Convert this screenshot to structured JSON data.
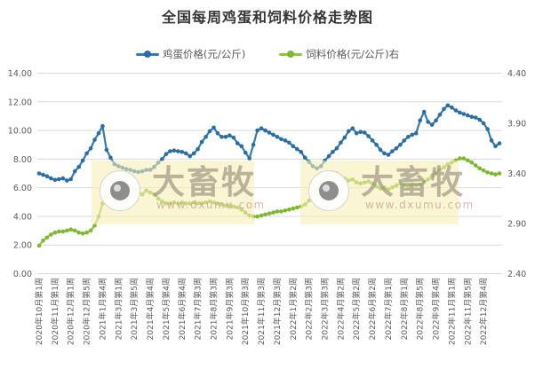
{
  "chart_data": {
    "type": "line",
    "title": "全国每周鸡蛋和饲料价格走势图",
    "x_labels": [
      "2020年10月第1周",
      "2020年11月第1周",
      "2020年12月第1周",
      "2020年12月第5周",
      "2021年1月第4周",
      "2021年3月第1周",
      "2021年3月第5周",
      "2021年4月第4周",
      "2021年5月第4周",
      "2021年6月第4周",
      "2021年7月第3周",
      "2021年8月第3周",
      "2021年9月第3周",
      "2021年10月第3周",
      "2021年11月第3周",
      "2021年12月第3周",
      "2022年1月第2周",
      "2022年2月第3周",
      "2022年3月第3周",
      "2022年4月第2周",
      "2022年5月第2周",
      "2022年6月第2周",
      "2022年7月第1周",
      "2022年8月第1周",
      "2022年8月第5周",
      "2022年9月第4周",
      "2022年11月第1周",
      "2022年11月第5周",
      "2022年12月第4周"
    ],
    "x_label_every": 4,
    "left_axis": {
      "min": 0,
      "max": 14,
      "ticks": [
        "0.00",
        "2.00",
        "4.00",
        "6.00",
        "8.00",
        "10.00",
        "12.00",
        "14.00"
      ]
    },
    "right_axis": {
      "min": 2.4,
      "max": 4.4,
      "ticks": [
        "2.40",
        "2.90",
        "3.40",
        "3.90",
        "4.40"
      ]
    },
    "grid_color": "#d9d9d9",
    "tick_color": "#595959",
    "legend_position": "top-center",
    "series": [
      {
        "name": "鸡蛋价格(元/公斤)",
        "axis": "left",
        "color": "#2f7cb4",
        "marker_color": "#2a6ea5",
        "values": [
          7.0,
          6.9,
          6.8,
          6.65,
          6.55,
          6.6,
          6.65,
          6.5,
          6.6,
          7.15,
          7.45,
          7.9,
          8.4,
          8.75,
          9.35,
          9.8,
          10.3,
          8.65,
          8.1,
          7.65,
          7.5,
          7.4,
          7.3,
          7.25,
          7.15,
          7.1,
          7.15,
          7.25,
          7.25,
          7.45,
          7.75,
          8.0,
          8.35,
          8.55,
          8.6,
          8.55,
          8.5,
          8.4,
          8.2,
          8.4,
          8.7,
          9.2,
          9.55,
          9.95,
          10.2,
          9.8,
          9.55,
          9.55,
          9.65,
          9.5,
          9.1,
          8.9,
          8.45,
          8.05,
          9.0,
          10.0,
          10.15,
          10.0,
          9.85,
          9.7,
          9.55,
          9.4,
          9.3,
          9.15,
          8.9,
          8.7,
          8.5,
          8.1,
          7.8,
          7.5,
          7.35,
          7.5,
          7.9,
          8.2,
          8.5,
          8.75,
          9.15,
          9.5,
          9.95,
          10.15,
          9.8,
          9.9,
          9.85,
          9.6,
          9.3,
          9.0,
          8.65,
          8.4,
          8.3,
          8.55,
          8.75,
          9.0,
          9.3,
          9.55,
          9.7,
          9.8,
          10.7,
          11.3,
          10.6,
          10.4,
          10.7,
          11.1,
          11.5,
          11.75,
          11.6,
          11.4,
          11.25,
          11.15,
          11.05,
          10.95,
          10.9,
          10.75,
          10.5,
          10.1,
          9.3,
          8.9,
          9.1
        ]
      },
      {
        "name": "饲料价格(元/公斤)右",
        "axis": "right",
        "color": "#8ec63f",
        "marker_color": "#7db82f",
        "values": [
          2.68,
          2.73,
          2.76,
          2.79,
          2.81,
          2.82,
          2.82,
          2.83,
          2.84,
          2.83,
          2.81,
          2.8,
          2.81,
          2.83,
          2.88,
          2.97,
          3.1,
          3.18,
          3.22,
          3.24,
          3.25,
          3.24,
          3.25,
          3.26,
          3.25,
          3.22,
          3.19,
          3.23,
          3.21,
          3.19,
          3.15,
          3.12,
          3.1,
          3.1,
          3.11,
          3.1,
          3.11,
          3.1,
          3.1,
          3.11,
          3.1,
          3.1,
          3.11,
          3.12,
          3.11,
          3.1,
          3.09,
          3.08,
          3.08,
          3.07,
          3.06,
          3.04,
          3.01,
          2.98,
          2.97,
          2.97,
          2.98,
          2.99,
          3.0,
          3.01,
          3.02,
          3.02,
          3.03,
          3.04,
          3.05,
          3.06,
          3.07,
          3.09,
          3.13,
          3.18,
          3.24,
          3.3,
          3.36,
          3.4,
          3.41,
          3.4,
          3.37,
          3.35,
          3.33,
          3.34,
          3.31,
          3.3,
          3.31,
          3.32,
          3.3,
          3.27,
          3.25,
          3.26,
          3.24,
          3.26,
          3.28,
          3.3,
          3.28,
          3.27,
          3.29,
          3.28,
          3.29,
          3.31,
          3.34,
          3.38,
          3.41,
          3.44,
          3.46,
          3.49,
          3.51,
          3.53,
          3.55,
          3.55,
          3.53,
          3.51,
          3.48,
          3.45,
          3.43,
          3.41,
          3.4,
          3.39,
          3.4
        ]
      }
    ]
  },
  "watermark": {
    "brand": "大畜牧",
    "url": "www.dxumu.com"
  }
}
